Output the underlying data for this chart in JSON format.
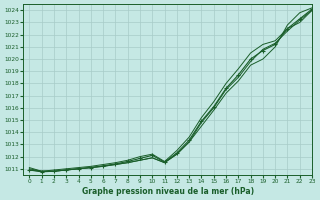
{
  "title": "Graphe pression niveau de la mer (hPa)",
  "xlim": [
    -0.5,
    23
  ],
  "ylim": [
    1010.5,
    1024.5
  ],
  "yticks": [
    1011,
    1012,
    1013,
    1014,
    1015,
    1016,
    1017,
    1018,
    1019,
    1020,
    1021,
    1022,
    1023,
    1024
  ],
  "xticks": [
    0,
    1,
    2,
    3,
    4,
    5,
    6,
    7,
    8,
    9,
    10,
    11,
    12,
    13,
    14,
    15,
    16,
    17,
    18,
    19,
    20,
    21,
    22,
    23
  ],
  "bg_color": "#c5e8e4",
  "grid_color": "#a8ccc8",
  "line_color": "#1a5e2a",
  "marker_color": "#1a5e2a",
  "series": [
    [
      1011.0,
      1010.8,
      1010.8,
      1010.9,
      1011.0,
      1011.1,
      1011.2,
      1011.35,
      1011.5,
      1011.7,
      1011.9,
      1011.5,
      1012.2,
      1013.2,
      1014.5,
      1015.8,
      1017.2,
      1018.2,
      1019.5,
      1020.0,
      1021.0,
      1022.8,
      1023.8,
      1024.2
    ],
    [
      1010.9,
      1010.8,
      1010.8,
      1010.9,
      1011.0,
      1011.1,
      1011.2,
      1011.35,
      1011.5,
      1011.7,
      1011.9,
      1011.5,
      1012.2,
      1013.2,
      1014.8,
      1016.0,
      1017.5,
      1018.5,
      1019.8,
      1020.8,
      1021.3,
      1022.3,
      1023.2,
      1024.0
    ],
    [
      1011.1,
      1010.8,
      1010.9,
      1011.0,
      1011.1,
      1011.2,
      1011.35,
      1011.5,
      1011.7,
      1012.0,
      1012.2,
      1011.6,
      1012.5,
      1013.6,
      1015.2,
      1016.5,
      1018.0,
      1019.2,
      1020.5,
      1021.2,
      1021.5,
      1022.5,
      1023.0,
      1024.0
    ],
    [
      1010.9,
      1010.75,
      1010.8,
      1010.9,
      1011.0,
      1011.1,
      1011.25,
      1011.4,
      1011.6,
      1011.85,
      1012.1,
      1011.55,
      1012.3,
      1013.35,
      1014.9,
      1016.1,
      1017.6,
      1018.7,
      1020.0,
      1020.7,
      1021.2,
      1022.5,
      1023.3,
      1024.1
    ]
  ],
  "marker_series": 3
}
